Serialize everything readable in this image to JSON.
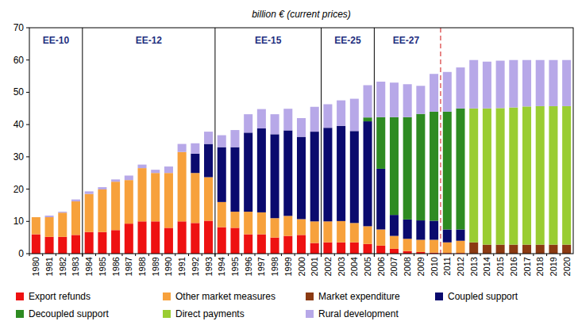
{
  "chart_data": {
    "type": "bar",
    "stacked": true,
    "grid": false,
    "legend": "bottom",
    "title": "billion € (current prices)",
    "categories": [
      "1980",
      "1981",
      "1982",
      "1983",
      "1984",
      "1985",
      "1986",
      "1987",
      "1988",
      "1989",
      "1990",
      "1991",
      "1992",
      "1993",
      "1994",
      "1995",
      "1996",
      "1997",
      "1998",
      "1999",
      "2000",
      "2001",
      "2002",
      "2003",
      "2004",
      "2005",
      "2006",
      "2007",
      "2008",
      "2009",
      "2010",
      "2011",
      "2012",
      "2013",
      "2014",
      "2015",
      "2016",
      "2017",
      "2018",
      "2019",
      "2020"
    ],
    "ylim": [
      0,
      70
    ],
    "yticks": [
      0,
      10,
      20,
      30,
      40,
      50,
      60,
      70
    ],
    "periods": [
      {
        "label": "EE-10",
        "start": "1980",
        "end": "1983"
      },
      {
        "label": "EE-12",
        "start": "1984",
        "end": "1993"
      },
      {
        "label": "EE-15",
        "start": "1994",
        "end": "2001"
      },
      {
        "label": "EE-25",
        "start": "2002",
        "end": "2005"
      },
      {
        "label": "EE-27",
        "start": "2006",
        "end": "2020"
      }
    ],
    "forecast_from": "2011",
    "series": [
      {
        "name": "Export refunds",
        "color": "#ee1111",
        "values": [
          6,
          5.2,
          5.2,
          5.8,
          6.7,
          6.7,
          7.3,
          9.3,
          10,
          10,
          8,
          10,
          9.5,
          10.2,
          8.2,
          8,
          6,
          6,
          5,
          5.5,
          5.8,
          3.3,
          3.5,
          3.5,
          3.5,
          3,
          2.5,
          1.5,
          0.8,
          0.5,
          0.3,
          0.2,
          0.2,
          null,
          null,
          null,
          null,
          null,
          null,
          null,
          null
        ]
      },
      {
        "name": "Other market measures",
        "color": "#f7a13c",
        "values": [
          5.3,
          6.1,
          7.5,
          10.4,
          11.8,
          13.2,
          15,
          13.5,
          16.5,
          15,
          17,
          21.5,
          15.5,
          13.5,
          7.8,
          5,
          7,
          6.8,
          6,
          6.2,
          4.9,
          6.7,
          6.5,
          6.6,
          6,
          5.5,
          5,
          4,
          3.8,
          3.8,
          4,
          3.3,
          3.8,
          null,
          null,
          null,
          null,
          null,
          null,
          null,
          null
        ]
      },
      {
        "name": "Market expenditure",
        "color": "#8b3a12",
        "values": [
          null,
          null,
          null,
          null,
          null,
          null,
          null,
          null,
          null,
          null,
          null,
          null,
          null,
          null,
          null,
          null,
          null,
          null,
          null,
          null,
          null,
          null,
          null,
          null,
          null,
          null,
          null,
          null,
          null,
          null,
          null,
          null,
          null,
          3.5,
          2.8,
          2.8,
          2.8,
          2.8,
          2.8,
          2.8,
          2.8
        ]
      },
      {
        "name": "Coupled support",
        "color": "#0a0a6e",
        "values": [
          null,
          null,
          null,
          null,
          null,
          null,
          null,
          null,
          null,
          null,
          null,
          null,
          6,
          10.3,
          17,
          20,
          24.5,
          26,
          26,
          26.5,
          25.5,
          27.8,
          29,
          29.5,
          28.5,
          32.5,
          18.8,
          6.5,
          6,
          6,
          5.9,
          4,
          3.5,
          null,
          null,
          null,
          null,
          null,
          null,
          null,
          null
        ]
      },
      {
        "name": "Decoupled support",
        "color": "#2e8b22",
        "values": [
          null,
          null,
          null,
          null,
          null,
          null,
          null,
          null,
          null,
          null,
          null,
          null,
          null,
          null,
          null,
          null,
          null,
          null,
          null,
          null,
          null,
          null,
          null,
          null,
          null,
          1.2,
          16,
          30.3,
          31.7,
          33,
          33.8,
          36.5,
          37.5,
          null,
          null,
          null,
          null,
          null,
          null,
          null,
          null
        ]
      },
      {
        "name": "Direct payments",
        "color": "#9acd32",
        "values": [
          null,
          null,
          null,
          null,
          null,
          null,
          null,
          null,
          null,
          null,
          null,
          null,
          null,
          null,
          null,
          null,
          null,
          null,
          null,
          null,
          null,
          null,
          null,
          null,
          null,
          null,
          null,
          null,
          null,
          null,
          null,
          null,
          null,
          41.5,
          42.2,
          42.3,
          42.5,
          42.8,
          42.9,
          42.9,
          42.9
        ]
      },
      {
        "name": "Rural development",
        "color": "#b7a8e8",
        "values": [
          null,
          0.5,
          0.3,
          0.6,
          0.8,
          0.7,
          0.7,
          1.4,
          1.1,
          1,
          2,
          2.5,
          3.2,
          3.8,
          3.7,
          5.3,
          5.7,
          6,
          6.2,
          6.7,
          5.8,
          7.7,
          7.3,
          7.9,
          10,
          10,
          11,
          10.7,
          10.2,
          8.7,
          11.7,
          12.3,
          12.7,
          15,
          14.5,
          14.7,
          14.7,
          14.4,
          14.3,
          14.3,
          14.3
        ]
      }
    ]
  }
}
